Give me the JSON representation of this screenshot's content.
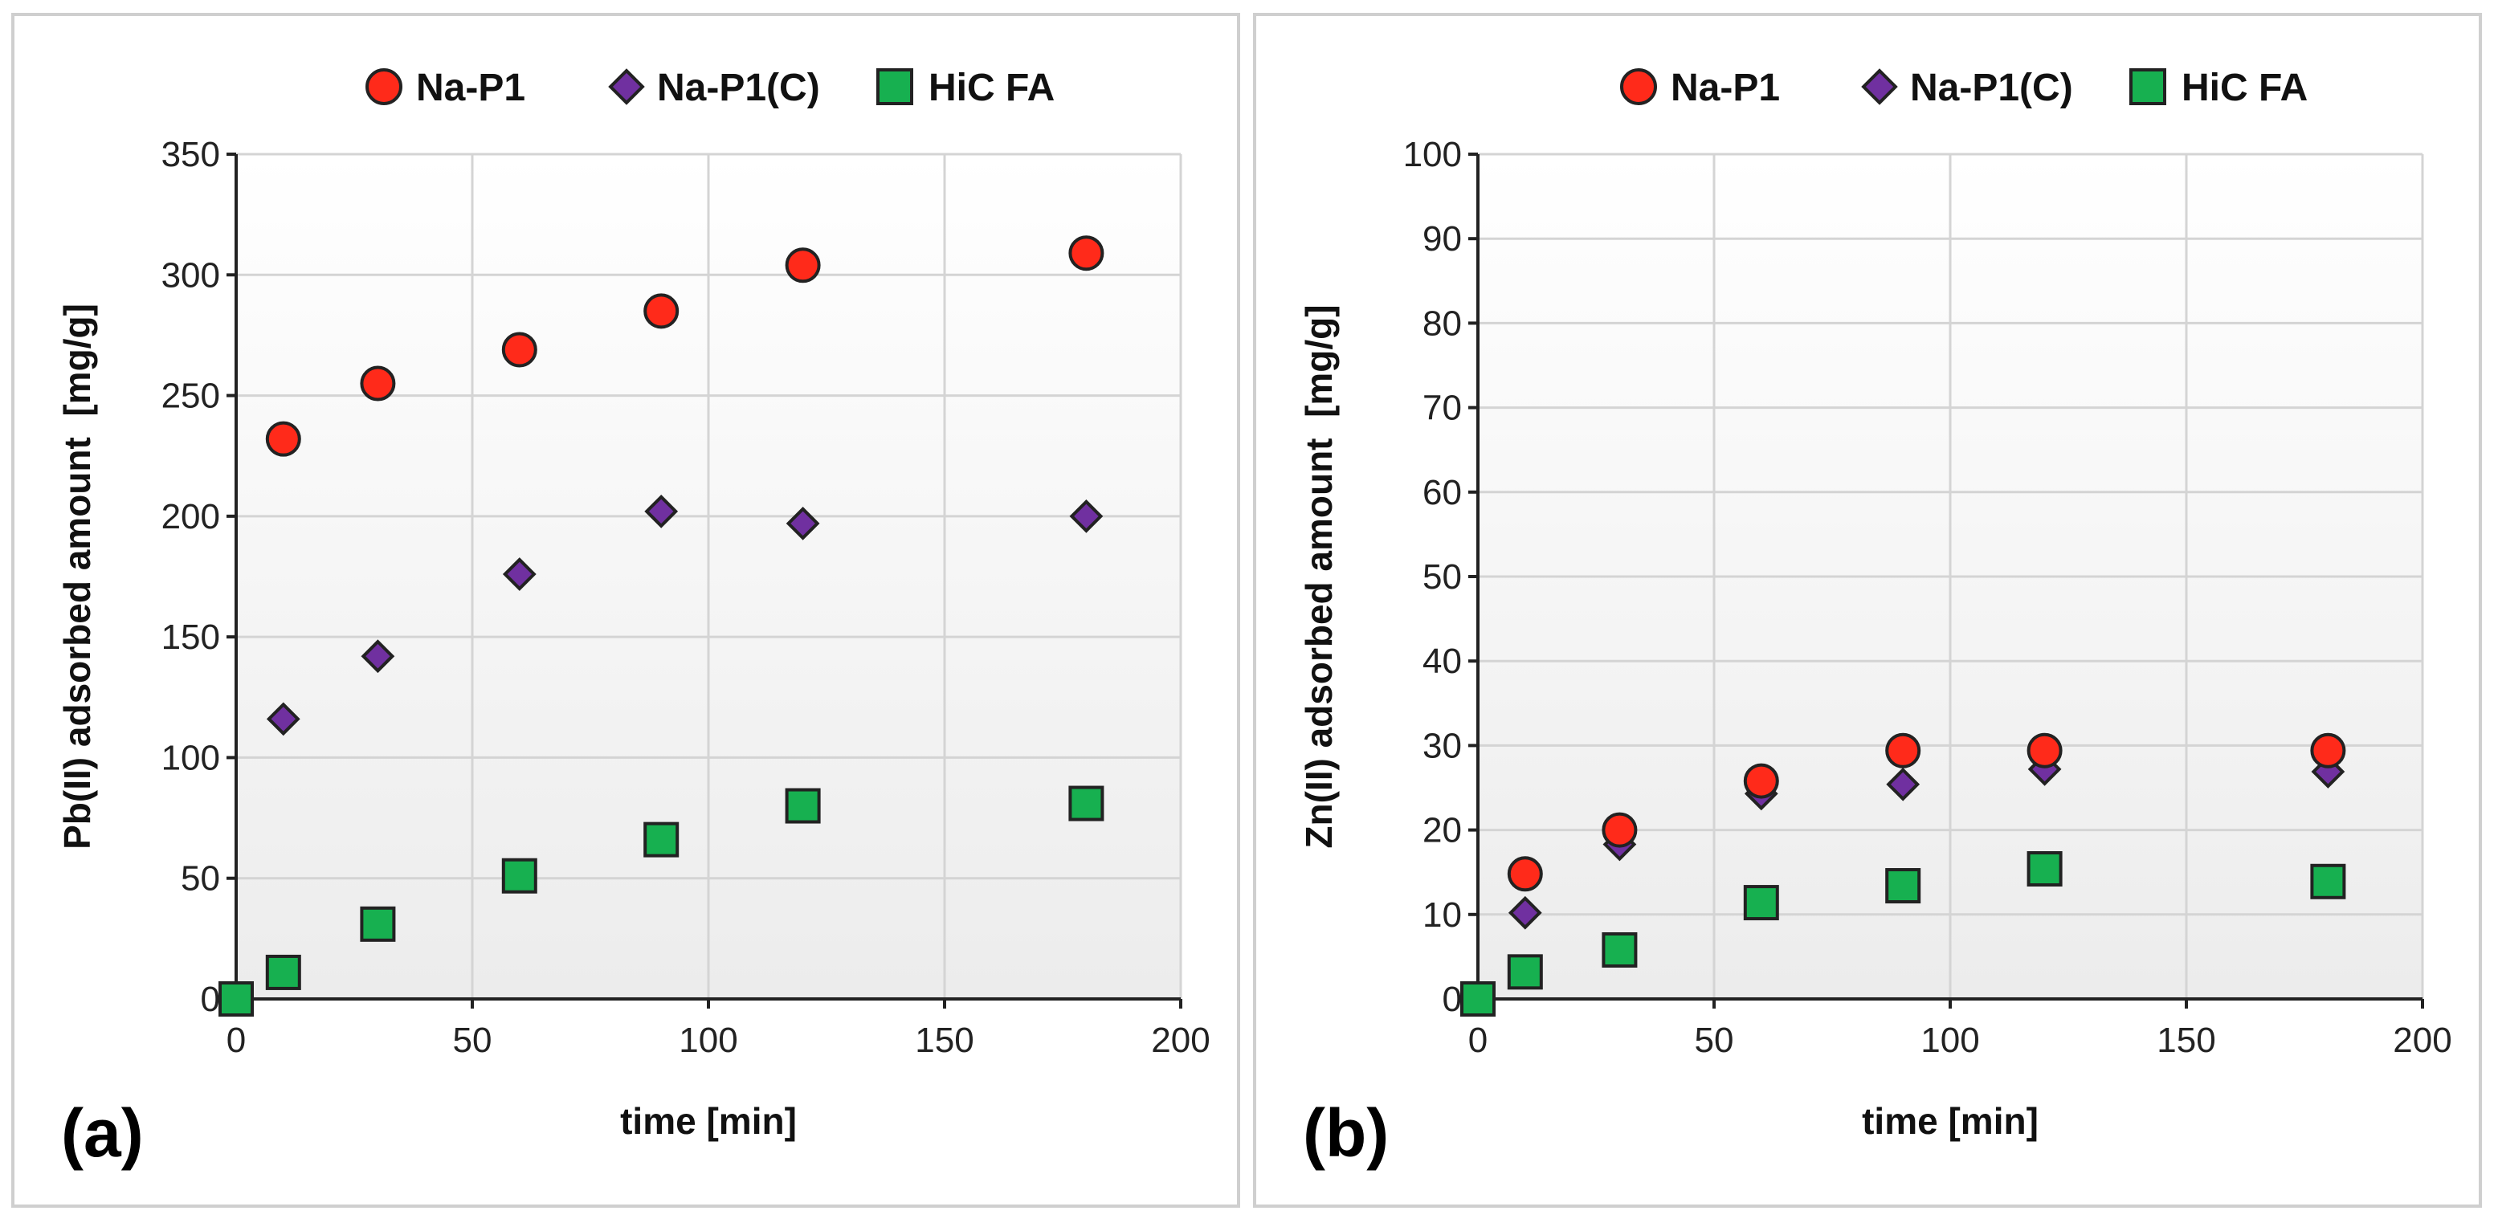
{
  "chart_data": [
    {
      "type": "scatter",
      "panel_label": "(a)",
      "title": "",
      "xlabel": "time [min]",
      "ylabel": "Pb(II) adsorbed amount  [mg/g]",
      "xlim": [
        0,
        200
      ],
      "ylim": [
        0,
        350
      ],
      "x_ticks": [
        0,
        50,
        100,
        150,
        200
      ],
      "y_ticks": [
        0,
        50,
        100,
        150,
        200,
        250,
        300,
        350
      ],
      "x_tick_labels": [
        "0",
        "50",
        "100",
        "150",
        "200"
      ],
      "y_tick_labels": [
        "0",
        "50",
        "100",
        "150",
        "200",
        "250",
        "300",
        "350"
      ],
      "grid": true,
      "legend_position": "top",
      "series": [
        {
          "name": "Na-P1",
          "marker": "circle",
          "color": "#ff2a1a",
          "x": [
            10,
            30,
            60,
            90,
            120,
            180
          ],
          "y": [
            232,
            255,
            269,
            285,
            304,
            309
          ]
        },
        {
          "name": "Na-P1(C)",
          "marker": "diamond",
          "color": "#7030a0",
          "x": [
            10,
            30,
            60,
            90,
            120,
            180
          ],
          "y": [
            116,
            142,
            176,
            202,
            197,
            200
          ]
        },
        {
          "name": "HiC FA",
          "marker": "square",
          "color": "#17b050",
          "x": [
            0,
            10,
            30,
            60,
            90,
            120,
            180
          ],
          "y": [
            0,
            11,
            31,
            51,
            66,
            80,
            81
          ]
        }
      ]
    },
    {
      "type": "scatter",
      "panel_label": "(b)",
      "title": "",
      "xlabel": "time [min]",
      "ylabel": "Zn(II) adsorbed amount  [mg/g]",
      "xlim": [
        0,
        200
      ],
      "ylim": [
        0,
        100
      ],
      "x_ticks": [
        0,
        50,
        100,
        150,
        200
      ],
      "y_ticks": [
        0,
        10,
        20,
        30,
        40,
        50,
        60,
        70,
        80,
        90,
        100
      ],
      "x_tick_labels": [
        "0",
        "50",
        "100",
        "150",
        "200"
      ],
      "y_tick_labels": [
        "0",
        "10",
        "20",
        "30",
        "40",
        "50",
        "60",
        "70",
        "80",
        "90",
        "100"
      ],
      "grid": true,
      "legend_position": "top",
      "series": [
        {
          "name": "Na-P1",
          "marker": "circle",
          "color": "#ff2a1a",
          "x": [
            10,
            30,
            60,
            90,
            120,
            180
          ],
          "y": [
            14.8,
            20.0,
            25.8,
            29.4,
            29.4,
            29.4
          ]
        },
        {
          "name": "Na-P1(C)",
          "marker": "diamond",
          "color": "#7030a0",
          "x": [
            10,
            30,
            60,
            90,
            120,
            180
          ],
          "y": [
            10.2,
            18.3,
            24.3,
            25.4,
            27.2,
            26.9
          ]
        },
        {
          "name": "HiC FA",
          "marker": "square",
          "color": "#17b050",
          "x": [
            0,
            10,
            30,
            60,
            90,
            120,
            180
          ],
          "y": [
            0,
            3.2,
            5.8,
            11.4,
            13.4,
            15.4,
            13.9
          ]
        }
      ]
    }
  ]
}
